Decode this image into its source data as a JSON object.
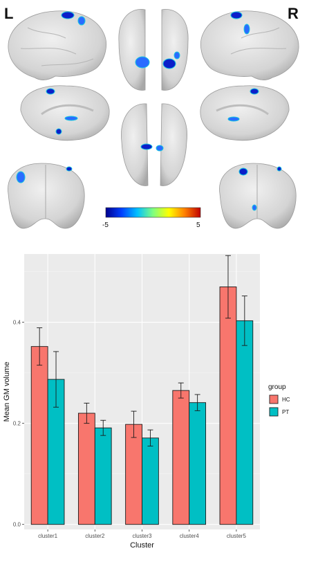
{
  "figure": {
    "left_label": "L",
    "right_label": "R",
    "colorbar": {
      "min_label": "-5",
      "max_label": "5",
      "stops": [
        "#00008f",
        "#0040ff",
        "#00c0ff",
        "#7fff7f",
        "#ffff00",
        "#ff8000",
        "#c00000"
      ]
    },
    "brain_color": "#d9d9d9",
    "blob_colors": [
      "#0b1fc9",
      "#2a6cff",
      "#19c6e0"
    ]
  },
  "chart_data": {
    "type": "bar",
    "categories": [
      "cluster1",
      "cluster2",
      "cluster3",
      "cluster4",
      "cluster5"
    ],
    "series": [
      {
        "name": "HC",
        "color": "#f8766d",
        "values": [
          0.352,
          0.22,
          0.198,
          0.265,
          0.47
        ],
        "err": [
          0.037,
          0.02,
          0.026,
          0.015,
          0.062
        ]
      },
      {
        "name": "PT",
        "color": "#00bfc4",
        "values": [
          0.287,
          0.191,
          0.171,
          0.241,
          0.403
        ],
        "err": [
          0.055,
          0.015,
          0.016,
          0.016,
          0.049
        ]
      }
    ],
    "xlabel": "Cluster",
    "ylabel": "Mean GM volume",
    "yticks": [
      "0.0",
      "0.2",
      "0.4"
    ],
    "ylim": [
      -0.01,
      0.535
    ],
    "legend_title": "group",
    "legend_position": "right",
    "grid": true,
    "panel_background": "#ebebeb"
  }
}
